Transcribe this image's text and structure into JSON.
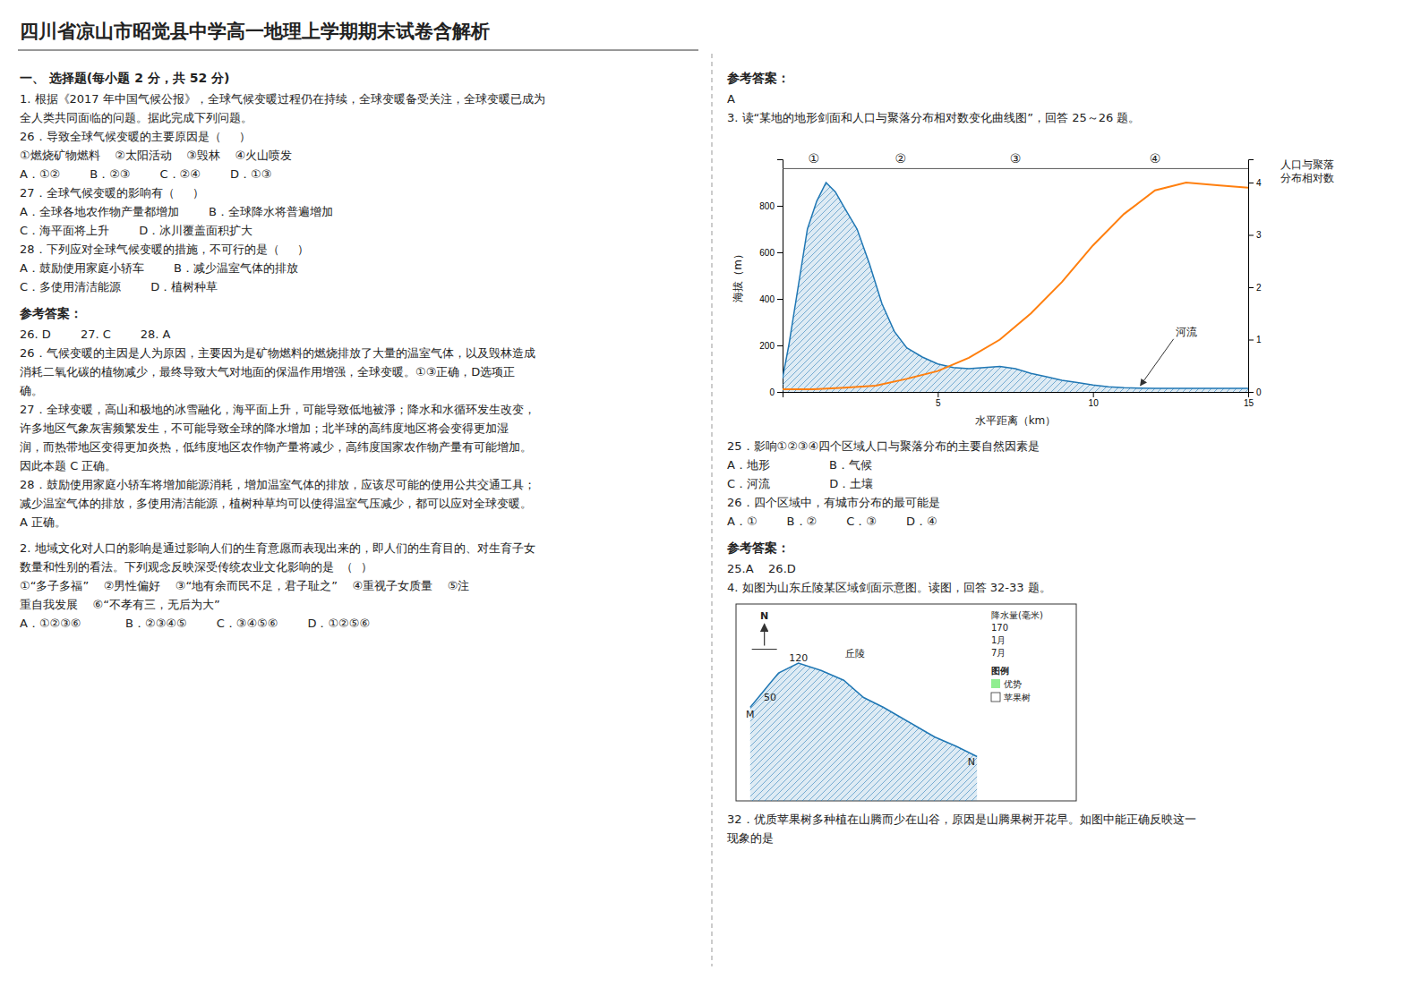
{
  "title": "四川省凉山市昭觉县中学高一地理上学期期末试卷含解析",
  "left_column": [
    {
      "heading": "一、 选择题(每小题 2 分，共 52 分)",
      "lines": [
        "1. 根据《2017 年中国气候公报》，全球气候变暖过程仍在持续，全球变暖备受关注，全球变暖已成为",
        "全人类共同面临的问题。据此完成下列问题。",
        "26．导致全球气候变暖的主要原因是（     ）",
        "①燃烧矿物燃料    ②太阳活动    ③毁林    ④火山喷发",
        "A．①②        B．②③        C．②④        D．①③",
        "27．全球气候变暖的影响有（     ）",
        "A．全球各地农作物产量都增加        B．全球降水将普遍增加",
        "C．海平面将上升        D．冰川覆盖面积扩大",
        "28．下列应对全球气候变暖的措施，不可行的是（     ）",
        "A．鼓励使用家庭小轿车        B．减少温室气体的排放",
        "C．多使用清洁能源        D．植树种草"
      ]
    },
    {
      "heading": "参考答案：",
      "lines": [
        "26. D        27. C        28. A",
        "26．气候变暖的主因是人为原因，主要因为是矿物燃料的燃烧排放了大量的温室气体，以及毁林造成",
        "消耗二氧化碳的植物减少，最终导致大气对地面的保温作用增强，全球变暖。①③正确，D选项正",
        "确。",
        "27．全球变暖，高山和极地的冰雪融化，海平面上升，可能导致低地被淨；降水和水循环发生改变，",
        "许多地区气象灰害频繁发生，不可能导致全球的降水增加；北半球的高纬度地区将会变得更加湿",
        "润，而热带地区变得更加炎热，低纬度地区农作物产量将减少，高纬度国家农作物产量有可能增加。",
        "因此本题 C 正确。",
        "28．鼓励使用家庭小轿车将增加能源消耗，增加温室气体的排放，应该尽可能的使用公共交通工具；",
        "减少温室气体的排放，多使用清洁能源，植树种草均可以使得温室气压减少，都可以应对全球变暖。",
        "A 正确。"
      ]
    },
    {
      "lines": [
        "2. 地域文化对人口的影响是通过影响人们的生育意愿而表现出来的，即人们的生育目的、对生育子女",
        "数量和性别的看法。下列观念反映深受传统农业文化影响的是  （  ）",
        "①“多子多福”    ②男性偏好    ③“地有余而民不足，君子耻之”    ④重视子女质量    ⑤注",
        "重自我发展    ⑥“不孝有三，无后为大”",
        "A．①②③⑥            B．②③④⑤        C．③④⑤⑥        D．①②⑤⑥"
      ]
    }
  ],
  "right_column": [
    {
      "heading": "参考答案：",
      "lines": [
        "A",
        "3. 读“某地的地形剑面和人口与聚落分布相对数变化曲线图”，回答 25～26 题。"
      ]
    },
    {
      "lines": [
        "25．影响①②③④四个区域人口与聚落分布的主要自然因素是",
        "A．地形                B．气候",
        "C．河流                D．土壤",
        "26．四个区域中，有城市分布的最可能是",
        "A．①        B．②        C．③        D．④"
      ]
    },
    {
      "heading": "参考答案：",
      "lines": [
        "25.A    26.D",
        "4. 如图为山东丘陵某区域剑面示意图。读图，回答 32-33 题。"
      ]
    },
    {
      "lines": [
        "32．优质苹果树多种植在山腾而少在山谷，原因是山腾果树开花早。如图中能正确反映这一",
        "现象的是"
      ]
    }
  ],
  "chart_data": [
    {
      "type": "line",
      "xlabel": "水平距离（km）",
      "ylabel": "海拔（m）",
      "y2label": [
        "人口与聚落",
        "分布相对数"
      ],
      "xlim": [
        0,
        15
      ],
      "xticks": [
        5,
        10,
        15
      ],
      "ylim": [
        0,
        1000
      ],
      "yticks": [
        0,
        200,
        400,
        600,
        800
      ],
      "y2lim": [
        0,
        4.444444444444445
      ],
      "y2ticks": [
        0,
        1,
        2,
        3,
        4
      ],
      "series": [
        {
          "type": "area",
          "x": [
            0,
            0.2,
            0.5,
            0.8,
            1.1,
            1.4,
            1.7,
            2.0,
            2.4,
            2.8,
            3.2,
            3.6,
            4.0,
            4.5,
            5.0,
            5.5,
            6.0,
            6.5,
            7.0,
            7.5,
            8.0,
            8.5,
            9.0,
            9.5,
            10.0,
            10.5,
            11.0,
            11.5,
            12.0,
            13.0,
            14.0,
            15.0
          ],
          "values": [
            60,
            200,
            450,
            700,
            820,
            900,
            860,
            790,
            700,
            550,
            380,
            260,
            190,
            150,
            120,
            105,
            100,
            105,
            110,
            100,
            80,
            65,
            50,
            40,
            30,
            22,
            18,
            16,
            15,
            15,
            15,
            15
          ]
        },
        {
          "type": "line",
          "axis": "y2",
          "x": [
            0,
            1.0,
            2.0,
            3.0,
            4.0,
            5.0,
            6.0,
            7.0,
            8.0,
            9.0,
            10.0,
            11.0,
            12.0,
            13.0,
            14.0,
            15.0
          ],
          "values": [
            0.05,
            0.05,
            0.08,
            0.12,
            0.25,
            0.4,
            0.65,
            1.0,
            1.5,
            2.1,
            2.8,
            3.4,
            3.85,
            4.0,
            3.95,
            3.9
          ]
        }
      ],
      "reference_lines": [
        {
          "y": 960
        }
      ],
      "markers": [
        {
          "label": "①",
          "x": 1.0
        },
        {
          "label": "②",
          "x": 3.8
        },
        {
          "label": "③",
          "x": 7.5
        },
        {
          "label": "④",
          "x": 12.0
        }
      ],
      "annotations": [
        {
          "text": "河流",
          "x": 11.5,
          "y": 20
        }
      ]
    },
    {
      "type": "area",
      "xlim": [
        0,
        12
      ],
      "ylim": [
        0,
        8
      ],
      "tick_labels": false,
      "series": [
        {
          "x": [
            0.5,
            1.0,
            1.5,
            2.2,
            3.0,
            3.8,
            4.5,
            5.2,
            5.8,
            6.4,
            7.0,
            7.8,
            8.5
          ],
          "values": [
            3.8,
            4.5,
            5.2,
            5.6,
            5.3,
            4.9,
            4.2,
            3.8,
            3.4,
            3.0,
            2.6,
            2.2,
            1.8
          ]
        }
      ],
      "north_arrow": {
        "label": "N",
        "x": 1.0,
        "y": 7.4
      },
      "labels": [
        {
          "text": "M",
          "x": 0.5,
          "y": 3.5
        },
        {
          "text": "N",
          "x": 8.3,
          "y": 1.6
        },
        {
          "text": "丘陵",
          "x": 4.2,
          "y": 6.0
        },
        {
          "text": "120",
          "x": 2.2,
          "y": 5.8
        },
        {
          "text": "50",
          "x": 1.2,
          "y": 4.2
        }
      ],
      "notes": [
        "降水量(毫米)",
        "170",
        "1月",
        "7月"
      ],
      "legend_title": "图例",
      "legend_items": [
        {
          "name": "优势",
          "color": "lightgreen"
        },
        {
          "name": "苹果树"
        }
      ]
    }
  ]
}
